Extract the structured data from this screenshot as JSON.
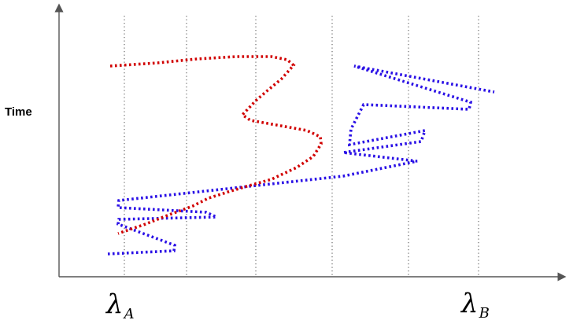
{
  "y_axis_label": "Time",
  "x_markers": {
    "a": {
      "symbol": "λ",
      "subscript": "A"
    },
    "b": {
      "symbol": "λ",
      "subscript": "B"
    }
  },
  "colors": {
    "axis": "#555555",
    "gridline": "#777777",
    "red_path": "#d10000",
    "blue_path": "#2a10e6"
  }
}
